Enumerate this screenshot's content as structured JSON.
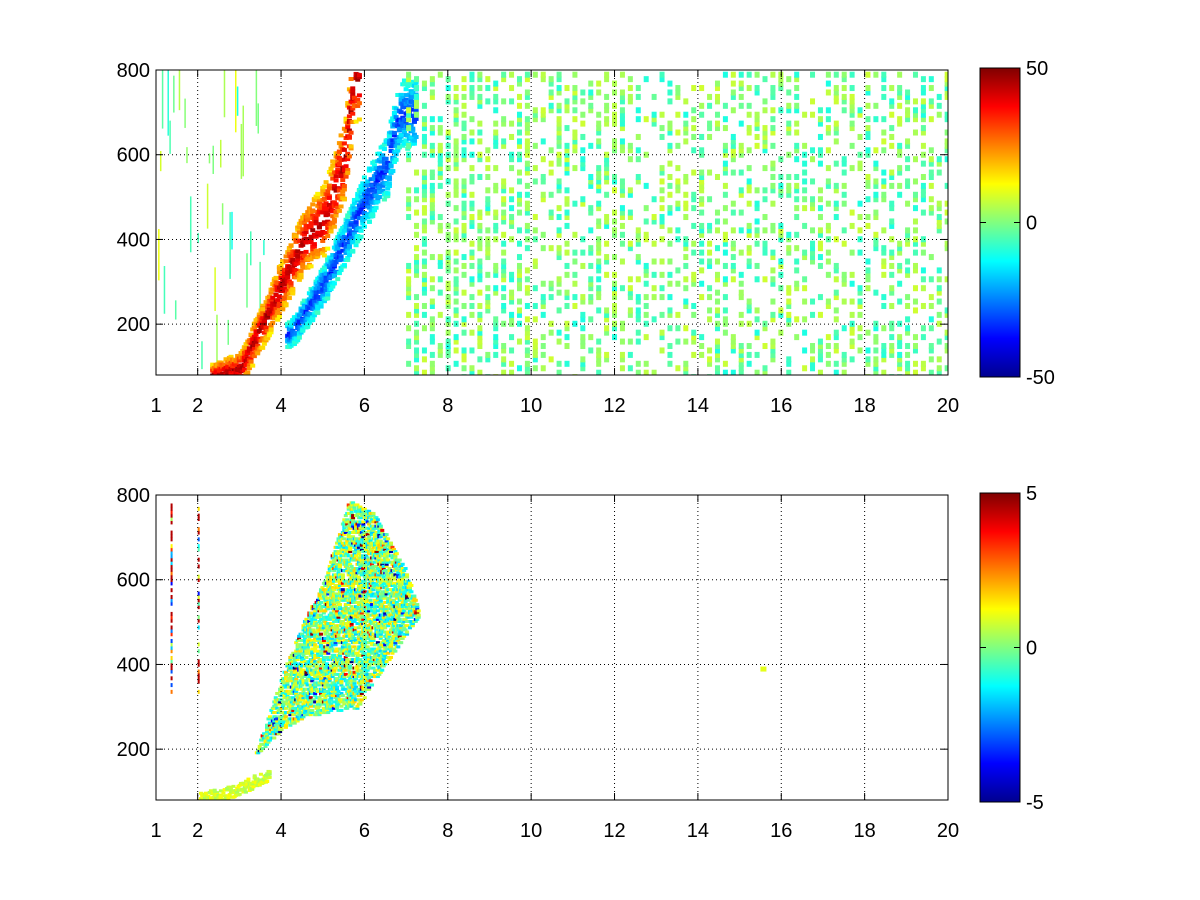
{
  "chart_data": [
    {
      "type": "heatmap",
      "panel": "top",
      "title": "",
      "xlabel": "",
      "ylabel": "",
      "xlim": [
        1,
        20
      ],
      "ylim": [
        80,
        800
      ],
      "x_ticks": [
        1,
        2,
        4,
        6,
        8,
        10,
        12,
        14,
        16,
        18,
        20
      ],
      "x_tick_labels": [
        "1",
        "2",
        "4",
        "6",
        "8",
        "10",
        "12",
        "14",
        "16",
        "18",
        "20"
      ],
      "y_ticks": [
        200,
        400,
        600,
        800
      ],
      "y_tick_labels": [
        "200",
        "400",
        "600",
        "800"
      ],
      "grid": true,
      "grid_style": "dotted",
      "colormap": "jet",
      "colorbar": {
        "min": -50,
        "max": 50,
        "ticks": [
          50,
          0,
          -50
        ],
        "tick_labels": [
          "50",
          "0",
          "-50"
        ]
      },
      "features": [
        {
          "name": "positive ridge",
          "value": 45,
          "points": [
            [
              2.4,
              85
            ],
            [
              3.0,
              100
            ],
            [
              3.5,
              200
            ],
            [
              4.0,
              300
            ],
            [
              4.5,
              400
            ],
            [
              5.0,
              450
            ],
            [
              5.5,
              600
            ],
            [
              5.7,
              780
            ]
          ]
        },
        {
          "name": "negative ridge",
          "value": -30,
          "points": [
            [
              4.2,
              180
            ],
            [
              5.0,
              300
            ],
            [
              5.5,
              400
            ],
            [
              6.0,
              500
            ],
            [
              6.5,
              580
            ],
            [
              6.8,
              700
            ]
          ]
        },
        {
          "name": "background scatter",
          "x_range": [
            7,
            20
          ],
          "value_range": [
            -8,
            8
          ]
        }
      ]
    },
    {
      "type": "heatmap",
      "panel": "bottom",
      "title": "",
      "xlabel": "",
      "ylabel": "",
      "xlim": [
        1,
        20
      ],
      "ylim": [
        80,
        800
      ],
      "x_ticks": [
        1,
        2,
        4,
        6,
        8,
        10,
        12,
        14,
        16,
        18,
        20
      ],
      "x_tick_labels": [
        "1",
        "2",
        "4",
        "6",
        "8",
        "10",
        "12",
        "14",
        "16",
        "18",
        "20"
      ],
      "y_ticks": [
        200,
        400,
        600,
        800
      ],
      "y_tick_labels": [
        "200",
        "400",
        "600",
        "800"
      ],
      "grid": true,
      "grid_style": "dotted",
      "colormap": "jet",
      "colorbar": {
        "min": -5,
        "max": 5,
        "ticks": [
          5,
          0,
          -5
        ],
        "tick_labels": [
          "5",
          "0",
          "-5"
        ]
      },
      "features": [
        {
          "name": "main cluster",
          "value_range": [
            -3,
            3
          ],
          "polygon": [
            [
              3.3,
              180
            ],
            [
              4.0,
              250
            ],
            [
              4.6,
              280
            ],
            [
              5.8,
              300
            ],
            [
              6.6,
              420
            ],
            [
              7.3,
              520
            ],
            [
              7.0,
              620
            ],
            [
              6.2,
              760
            ],
            [
              5.6,
              790
            ],
            [
              5.0,
              600
            ],
            [
              4.5,
              500
            ],
            [
              4.0,
              380
            ],
            [
              3.6,
              260
            ]
          ]
        },
        {
          "name": "low branch",
          "value": 0.8,
          "points": [
            [
              2.0,
              85
            ],
            [
              2.5,
              95
            ],
            [
              3.0,
              110
            ],
            [
              3.6,
              140
            ]
          ]
        },
        {
          "name": "left streaks",
          "x_values": [
            1.35,
            2.0
          ],
          "y_range": [
            340,
            780
          ]
        },
        {
          "name": "isolated point",
          "x": 15.5,
          "y": 395,
          "value": 1
        }
      ]
    }
  ]
}
